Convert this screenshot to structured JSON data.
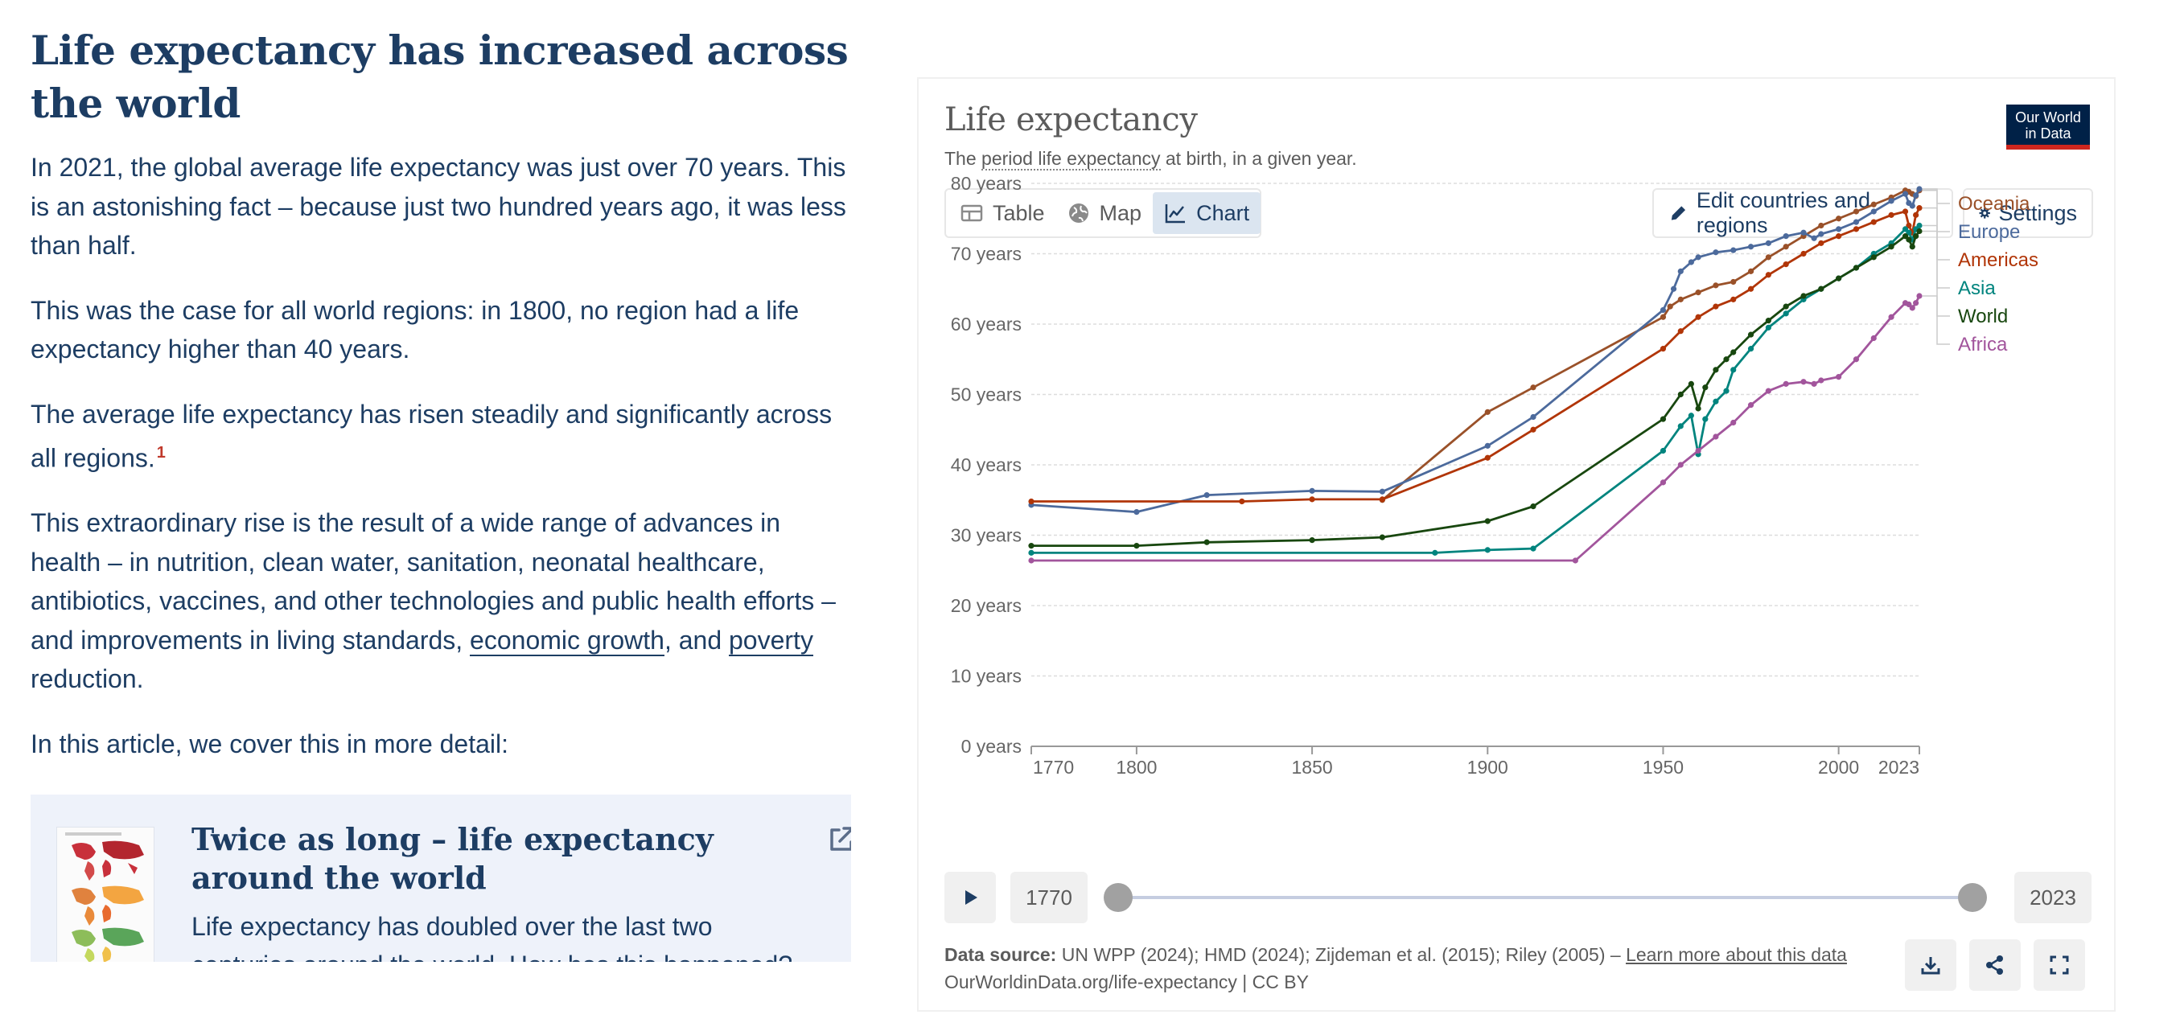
{
  "article": {
    "title": "Life expectancy has increased across the world",
    "p1": "In 2021, the global average life expectancy was just over 70 years. This is an astonishing fact – because just two hundred years ago, it was less than half.",
    "p2": "This was the case for all world regions: in 1800, no region had a life expectancy higher than 40 years.",
    "p3": "The average life expectancy has risen steadily and significantly across all regions.",
    "p3_footnote": "1",
    "p4_a": "This extraordinary rise is the result of a wide range of advances in health – in nutrition, clean water, sanitation, neonatal healthcare, antibiotics, vaccines, and other technologies and public health efforts – and improvements in living standards, ",
    "p4_link1": "economic growth",
    "p4_b": ", and ",
    "p4_link2": "poverty",
    "p4_c": " reduction.",
    "p5": "In this article, we cover this in more detail:",
    "card": {
      "title": "Twice as long – life expectancy around the world",
      "description": "Life expectancy has doubled over the last two centuries around the world. How has this happened?",
      "icon": "external-link-icon"
    }
  },
  "grapher": {
    "title": "Life expectancy",
    "subtitle_link": "period life expectancy",
    "subtitle_prefix": "The ",
    "subtitle_suffix": " at birth, in a given year.",
    "logo_line1": "Our World",
    "logo_line2": "in Data",
    "tabs": [
      {
        "label": "Table",
        "icon": "table-icon"
      },
      {
        "label": "Map",
        "icon": "globe-icon"
      },
      {
        "label": "Chart",
        "icon": "line-chart-icon",
        "active": true
      }
    ],
    "edit_button": "Edit countries and regions",
    "settings_button": "Settings",
    "timeline": {
      "start": "1770",
      "end": "2023"
    },
    "source_label": "Data source:",
    "source_text": " UN WPP (2024); HMD (2024); Zijdeman et al. (2015); Riley (2005) – ",
    "learn_more": "Learn more about this data",
    "url": "OurWorldinData.org/life-expectancy | CC BY"
  },
  "chart_data": {
    "type": "line",
    "title": "Life expectancy",
    "ylim": [
      0,
      80
    ],
    "xlim": [
      1770,
      2023
    ],
    "y_ticks": [
      "0 years",
      "10 years",
      "20 years",
      "30 years",
      "40 years",
      "50 years",
      "60 years",
      "70 years",
      "80 years"
    ],
    "y_tick_values": [
      0,
      10,
      20,
      30,
      40,
      50,
      60,
      70,
      80
    ],
    "x_ticks": [
      1770,
      1800,
      1850,
      1900,
      1950,
      2000,
      2023
    ],
    "grid": true,
    "legend_position": "right",
    "series": [
      {
        "name": "Oceania",
        "color": "#9a5129",
        "points": [
          [
            1870,
            35.0
          ],
          [
            1900,
            47.5
          ],
          [
            1913,
            51.0
          ],
          [
            1950,
            61.0
          ],
          [
            1952,
            62.5
          ],
          [
            1955,
            63.5
          ],
          [
            1960,
            64.5
          ],
          [
            1965,
            65.5
          ],
          [
            1970,
            66.0
          ],
          [
            1975,
            67.5
          ],
          [
            1980,
            69.5
          ],
          [
            1985,
            71.0
          ],
          [
            1990,
            72.5
          ],
          [
            1995,
            74.0
          ],
          [
            2000,
            75.0
          ],
          [
            2005,
            76.0
          ],
          [
            2010,
            77.0
          ],
          [
            2015,
            78.0
          ],
          [
            2019,
            79.0
          ],
          [
            2020,
            78.8
          ],
          [
            2021,
            78.5
          ],
          [
            2022,
            78.2
          ],
          [
            2023,
            79.0
          ]
        ]
      },
      {
        "name": "Europe",
        "color": "#4c6a9c",
        "points": [
          [
            1770,
            34.3
          ],
          [
            1800,
            33.3
          ],
          [
            1820,
            35.7
          ],
          [
            1850,
            36.3
          ],
          [
            1870,
            36.2
          ],
          [
            1900,
            42.7
          ],
          [
            1913,
            46.8
          ],
          [
            1950,
            62.0
          ],
          [
            1953,
            65.0
          ],
          [
            1955,
            67.5
          ],
          [
            1958,
            68.8
          ],
          [
            1960,
            69.5
          ],
          [
            1965,
            70.2
          ],
          [
            1970,
            70.5
          ],
          [
            1975,
            71.0
          ],
          [
            1980,
            71.5
          ],
          [
            1985,
            72.5
          ],
          [
            1990,
            73.0
          ],
          [
            1993,
            72.2
          ],
          [
            1995,
            72.8
          ],
          [
            2000,
            73.5
          ],
          [
            2005,
            74.5
          ],
          [
            2010,
            76.0
          ],
          [
            2015,
            77.5
          ],
          [
            2019,
            78.5
          ],
          [
            2020,
            77.2
          ],
          [
            2021,
            76.8
          ],
          [
            2022,
            78.3
          ],
          [
            2023,
            79.2
          ]
        ]
      },
      {
        "name": "Americas",
        "color": "#b13507",
        "points": [
          [
            1770,
            34.8
          ],
          [
            1830,
            34.8
          ],
          [
            1850,
            35.1
          ],
          [
            1870,
            35.1
          ],
          [
            1900,
            41.0
          ],
          [
            1913,
            45.0
          ],
          [
            1950,
            56.5
          ],
          [
            1955,
            59.0
          ],
          [
            1960,
            61.0
          ],
          [
            1965,
            62.5
          ],
          [
            1970,
            63.5
          ],
          [
            1975,
            65.0
          ],
          [
            1980,
            67.0
          ],
          [
            1985,
            68.5
          ],
          [
            1990,
            70.0
          ],
          [
            1995,
            71.5
          ],
          [
            2000,
            72.5
          ],
          [
            2005,
            73.5
          ],
          [
            2010,
            74.5
          ],
          [
            2015,
            75.5
          ],
          [
            2019,
            76.0
          ],
          [
            2020,
            74.0
          ],
          [
            2021,
            73.0
          ],
          [
            2022,
            75.5
          ],
          [
            2023,
            76.5
          ]
        ]
      },
      {
        "name": "Asia",
        "color": "#00847e",
        "points": [
          [
            1770,
            27.5
          ],
          [
            1885,
            27.5
          ],
          [
            1900,
            27.9
          ],
          [
            1913,
            28.1
          ],
          [
            1950,
            42.0
          ],
          [
            1955,
            45.5
          ],
          [
            1958,
            47.0
          ],
          [
            1960,
            41.5
          ],
          [
            1962,
            46.5
          ],
          [
            1965,
            49.0
          ],
          [
            1968,
            50.5
          ],
          [
            1970,
            53.5
          ],
          [
            1975,
            56.5
          ],
          [
            1980,
            59.5
          ],
          [
            1985,
            61.5
          ],
          [
            1990,
            63.5
          ],
          [
            1995,
            65.0
          ],
          [
            2000,
            66.5
          ],
          [
            2005,
            68.0
          ],
          [
            2010,
            70.0
          ],
          [
            2015,
            71.5
          ],
          [
            2019,
            73.5
          ],
          [
            2020,
            73.0
          ],
          [
            2021,
            72.0
          ],
          [
            2022,
            73.5
          ],
          [
            2023,
            74.0
          ]
        ]
      },
      {
        "name": "World",
        "color": "#18470f",
        "points": [
          [
            1770,
            28.5
          ],
          [
            1800,
            28.5
          ],
          [
            1820,
            29.0
          ],
          [
            1850,
            29.3
          ],
          [
            1870,
            29.7
          ],
          [
            1900,
            32.0
          ],
          [
            1913,
            34.1
          ],
          [
            1950,
            46.5
          ],
          [
            1955,
            50.0
          ],
          [
            1958,
            51.5
          ],
          [
            1960,
            48.0
          ],
          [
            1962,
            51.0
          ],
          [
            1965,
            53.5
          ],
          [
            1968,
            55.0
          ],
          [
            1970,
            56.0
          ],
          [
            1975,
            58.5
          ],
          [
            1980,
            60.5
          ],
          [
            1985,
            62.5
          ],
          [
            1990,
            64.0
          ],
          [
            1995,
            65.0
          ],
          [
            2000,
            66.5
          ],
          [
            2005,
            68.0
          ],
          [
            2010,
            69.5
          ],
          [
            2015,
            71.0
          ],
          [
            2019,
            72.5
          ],
          [
            2020,
            72.0
          ],
          [
            2021,
            71.0
          ],
          [
            2022,
            72.5
          ],
          [
            2023,
            73.2
          ]
        ]
      },
      {
        "name": "Africa",
        "color": "#a2559c",
        "points": [
          [
            1770,
            26.4
          ],
          [
            1925,
            26.4
          ],
          [
            1950,
            37.5
          ],
          [
            1955,
            40.0
          ],
          [
            1960,
            42.0
          ],
          [
            1965,
            44.0
          ],
          [
            1970,
            46.0
          ],
          [
            1975,
            48.5
          ],
          [
            1980,
            50.5
          ],
          [
            1985,
            51.5
          ],
          [
            1990,
            51.8
          ],
          [
            1993,
            51.5
          ],
          [
            1995,
            52.0
          ],
          [
            2000,
            52.5
          ],
          [
            2005,
            55.0
          ],
          [
            2010,
            58.0
          ],
          [
            2015,
            61.0
          ],
          [
            2019,
            63.0
          ],
          [
            2020,
            62.8
          ],
          [
            2021,
            62.3
          ],
          [
            2022,
            63.0
          ],
          [
            2023,
            64.0
          ]
        ]
      }
    ]
  }
}
